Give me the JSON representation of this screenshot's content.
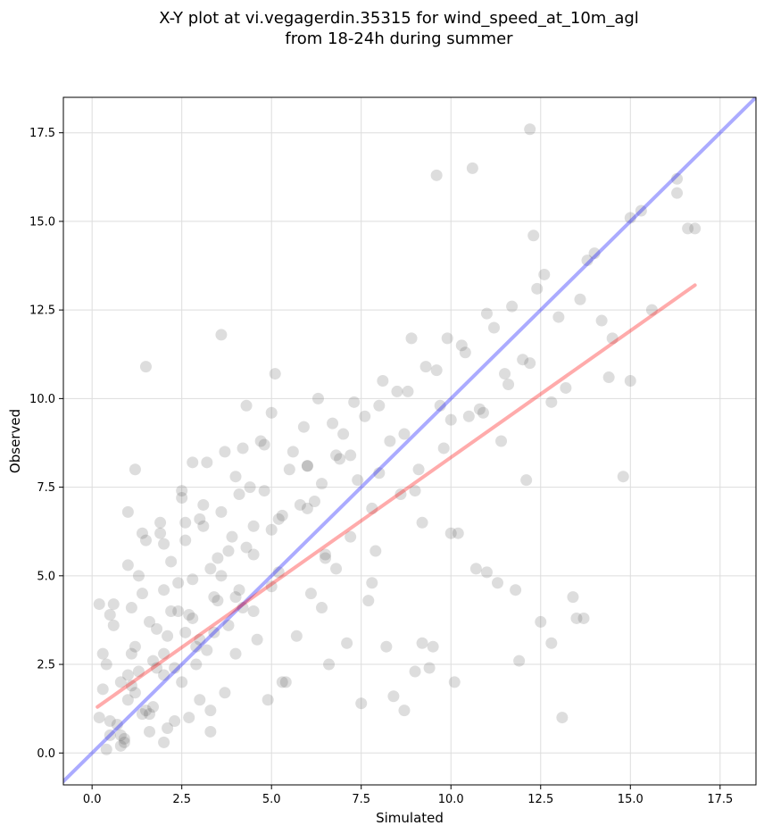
{
  "chart_data": {
    "type": "scatter",
    "title_line1": "X-Y plot at vi.vegagerdin.35315 for wind_speed_at_10m_agl",
    "title_line2": "from 18-24h during summer",
    "xlabel": "Simulated",
    "ylabel": "Observed",
    "xlim": [
      -0.8,
      18.5
    ],
    "ylim": [
      -0.9,
      18.5
    ],
    "xticks": [
      0.0,
      2.5,
      5.0,
      7.5,
      10.0,
      12.5,
      15.0,
      17.5
    ],
    "yticks": [
      0.0,
      2.5,
      5.0,
      7.5,
      10.0,
      12.5,
      15.0,
      17.5
    ],
    "xtick_labels": [
      "0.0",
      "2.5",
      "5.0",
      "7.5",
      "10.0",
      "12.5",
      "15.0",
      "17.5"
    ],
    "ytick_labels": [
      "0.0",
      "2.5",
      "5.0",
      "7.5",
      "10.0",
      "12.5",
      "15.0",
      "17.5"
    ],
    "grid": true,
    "point_color": "#555555",
    "identity_line": {
      "x": [
        -0.8,
        18.5
      ],
      "y": [
        -0.8,
        18.5
      ],
      "color": "#0000ff"
    },
    "regression_line": {
      "x": [
        0.15,
        16.8
      ],
      "y": [
        1.3,
        13.2
      ],
      "color": "#ff0000"
    },
    "x": [
      0.2,
      0.5,
      0.8,
      1.0,
      1.2,
      0.4,
      0.7,
      1.5,
      1.8,
      2.0,
      2.2,
      0.3,
      0.9,
      1.1,
      1.4,
      1.6,
      2.5,
      2.8,
      3.0,
      0.6,
      1.3,
      1.7,
      2.1,
      2.4,
      2.7,
      3.2,
      3.5,
      3.8,
      4.0,
      0.5,
      1.0,
      1.5,
      2.0,
      2.3,
      2.6,
      2.9,
      3.3,
      3.6,
      4.2,
      4.5,
      0.8,
      1.2,
      1.9,
      2.2,
      2.8,
      3.1,
      3.4,
      3.9,
      4.3,
      4.8,
      5.0,
      1.0,
      1.6,
      2.0,
      2.5,
      3.0,
      3.5,
      4.0,
      4.5,
      5.2,
      5.5,
      6.0,
      1.4,
      1.8,
      2.4,
      3.2,
      3.8,
      4.4,
      5.0,
      5.6,
      6.2,
      6.5,
      7.0,
      2.0,
      2.6,
      3.4,
      4.1,
      4.7,
      5.3,
      5.9,
      6.4,
      6.8,
      7.2,
      7.6,
      8.0,
      3.0,
      3.6,
      4.2,
      5.0,
      5.8,
      6.3,
      6.9,
      7.3,
      7.8,
      8.3,
      8.8,
      9.0,
      4.5,
      5.2,
      6.0,
      6.7,
      7.4,
      8.1,
      8.7,
      9.2,
      9.6,
      10.0,
      10.4,
      6.5,
      7.2,
      8.0,
      8.6,
      9.3,
      9.8,
      10.3,
      10.8,
      11.2,
      11.6,
      7.8,
      8.5,
      9.1,
      9.9,
      10.5,
      11.0,
      11.5,
      12.0,
      12.4,
      12.8,
      9.5,
      10.2,
      10.9,
      11.7,
      12.2,
      12.6,
      13.2,
      13.6,
      14.0,
      14.5,
      10.7,
      11.4,
      12.3,
      13.0,
      13.8,
      14.4,
      15.0,
      15.6,
      16.3,
      16.8,
      0.3,
      0.6,
      1.1,
      1.7,
      2.3,
      2.9,
      3.7,
      4.6,
      5.4,
      6.1,
      0.4,
      0.9,
      1.3,
      2.1,
      2.7,
      3.3,
      4.0,
      4.9,
      5.7,
      6.6,
      1.5,
      1.2,
      2.8,
      3.1,
      4.3,
      5.1,
      6.8,
      7.7,
      8.4,
      9.4,
      1.0,
      1.9,
      2.5,
      3.6,
      4.8,
      6.0,
      7.1,
      8.2,
      9.0,
      10.1,
      12.2,
      13.1,
      13.5,
      12.8,
      11.3,
      9.6,
      10.6,
      8.9,
      7.5,
      15.0,
      16.3,
      16.6,
      14.2,
      12.5,
      11.8,
      13.4,
      15.3,
      12.1,
      11.0,
      9.7,
      3.7,
      1.4,
      0.5,
      1.1,
      2.0,
      0.2,
      0.8,
      1.6,
      2.6,
      3.3,
      4.1,
      5.3,
      6.4,
      7.9,
      8.7,
      9.2,
      10.0,
      11.9,
      13.7,
      14.8
    ],
    "y": [
      1.0,
      0.5,
      2.0,
      1.5,
      3.0,
      2.5,
      0.8,
      1.2,
      3.5,
      2.2,
      4.0,
      1.8,
      0.3,
      2.8,
      4.5,
      0.6,
      2.0,
      3.8,
      1.5,
      4.2,
      5.0,
      2.6,
      3.3,
      4.8,
      1.0,
      2.9,
      5.5,
      3.6,
      4.4,
      3.9,
      5.3,
      6.0,
      4.6,
      2.4,
      6.5,
      3.0,
      5.2,
      6.8,
      4.1,
      5.6,
      0.5,
      1.7,
      6.2,
      5.4,
      4.9,
      7.0,
      3.4,
      6.1,
      5.8,
      7.4,
      4.7,
      2.2,
      3.7,
      5.9,
      7.2,
      6.6,
      4.3,
      7.8,
      6.4,
      5.1,
      8.0,
      6.9,
      1.1,
      2.4,
      4.0,
      8.2,
      5.7,
      7.5,
      6.3,
      8.5,
      7.1,
      5.5,
      9.0,
      2.8,
      6.0,
      4.4,
      7.3,
      8.8,
      6.7,
      9.2,
      7.6,
      8.4,
      6.1,
      9.5,
      7.9,
      3.2,
      5.0,
      8.6,
      9.6,
      7.0,
      10.0,
      8.3,
      9.9,
      6.9,
      8.8,
      10.2,
      7.4,
      4.0,
      6.6,
      8.1,
      9.3,
      7.7,
      10.5,
      9.0,
      6.5,
      10.8,
      9.4,
      11.3,
      5.6,
      8.4,
      9.8,
      7.3,
      10.9,
      8.6,
      11.5,
      9.7,
      12.0,
      10.4,
      4.8,
      10.2,
      8.0,
      11.7,
      9.5,
      12.4,
      10.7,
      11.1,
      13.1,
      9.9,
      3.0,
      6.2,
      9.6,
      12.6,
      11.0,
      13.5,
      10.3,
      12.8,
      14.1,
      11.7,
      5.2,
      8.8,
      14.6,
      12.3,
      13.9,
      10.6,
      15.1,
      12.5,
      15.8,
      14.8,
      2.8,
      3.6,
      1.9,
      1.3,
      0.9,
      2.5,
      1.7,
      3.2,
      2.0,
      4.5,
      0.1,
      0.4,
      2.3,
      0.7,
      3.9,
      1.2,
      2.8,
      1.5,
      3.3,
      2.5,
      10.9,
      8.0,
      8.2,
      6.4,
      9.8,
      10.7,
      5.2,
      4.3,
      1.6,
      2.4,
      6.8,
      6.5,
      7.4,
      11.8,
      8.7,
      8.1,
      3.1,
      3.0,
      2.3,
      2.0,
      17.6,
      1.0,
      3.8,
      3.1,
      4.8,
      16.3,
      16.5,
      11.7,
      1.4,
      10.5,
      16.2,
      14.8,
      12.2,
      3.7,
      4.6,
      4.4,
      15.3,
      7.7,
      5.1,
      9.8,
      8.5,
      6.2,
      0.9,
      4.1,
      0.3,
      4.2,
      0.2,
      1.1,
      3.4,
      0.6,
      4.6,
      2.0,
      4.1,
      5.7,
      1.2,
      3.1,
      6.2,
      2.6,
      3.8,
      7.8
    ]
  }
}
